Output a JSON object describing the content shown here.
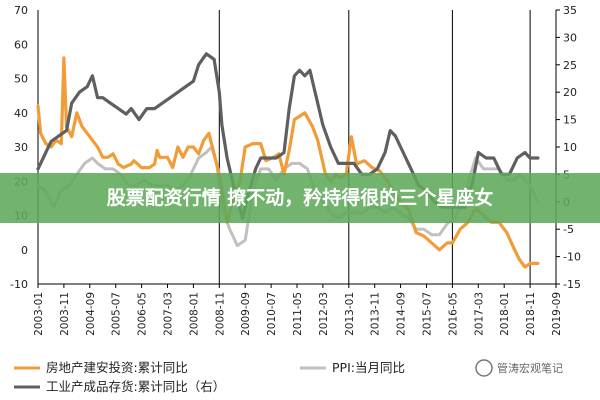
{
  "chart_data": {
    "type": "line",
    "x": [
      "2003-01",
      "2003-11",
      "2004-09",
      "2005-07",
      "2006-05",
      "2007-03",
      "2008-01",
      "2008-11",
      "2009-09",
      "2010-07",
      "2011-05",
      "2012-03",
      "2013-01",
      "2013-11",
      "2014-09",
      "2015-07",
      "2016-05",
      "2017-03",
      "2018-01",
      "2018-11",
      "2019-09"
    ],
    "xlim": [
      "2003-01",
      "2019-09"
    ],
    "ylim_left": [
      -10,
      70
    ],
    "yticks_left": [
      -10,
      0,
      10,
      20,
      30,
      40,
      50,
      60,
      70
    ],
    "ylim_right": [
      -15,
      35
    ],
    "yticks_right": [
      -15,
      -10,
      -5,
      0,
      5,
      10,
      15,
      20,
      25,
      30,
      35
    ],
    "vlines": [
      "2003-01",
      "2008-11",
      "2013-01",
      "2016-05",
      "2018-11"
    ],
    "series": [
      {
        "name": "房地产建安投资:累计同比",
        "axis": "left",
        "color": "#f29c38",
        "points": [
          [
            "2003-01",
            42
          ],
          [
            "2003-02",
            34
          ],
          [
            "2003-04",
            31
          ],
          [
            "2003-06",
            30
          ],
          [
            "2003-08",
            32
          ],
          [
            "2003-10",
            31
          ],
          [
            "2003-11",
            56
          ],
          [
            "2003-12",
            36
          ],
          [
            "2004-02",
            33
          ],
          [
            "2004-04",
            40
          ],
          [
            "2004-06",
            36
          ],
          [
            "2004-08",
            34
          ],
          [
            "2004-10",
            32
          ],
          [
            "2004-12",
            30
          ],
          [
            "2005-02",
            27
          ],
          [
            "2005-04",
            27
          ],
          [
            "2005-06",
            28
          ],
          [
            "2005-08",
            25
          ],
          [
            "2005-10",
            24
          ],
          [
            "2006-01",
            25
          ],
          [
            "2006-02",
            26
          ],
          [
            "2006-05",
            24
          ],
          [
            "2006-08",
            24
          ],
          [
            "2006-10",
            25
          ],
          [
            "2006-11",
            29
          ],
          [
            "2006-12",
            27
          ],
          [
            "2007-03",
            27
          ],
          [
            "2007-05",
            24
          ],
          [
            "2007-07",
            30
          ],
          [
            "2007-09",
            27
          ],
          [
            "2007-11",
            30
          ],
          [
            "2008-01",
            30
          ],
          [
            "2008-03",
            28
          ],
          [
            "2008-05",
            32
          ],
          [
            "2008-07",
            34
          ],
          [
            "2008-09",
            28
          ],
          [
            "2008-11",
            22
          ],
          [
            "2009-02",
            8
          ],
          [
            "2009-04",
            14
          ],
          [
            "2009-07",
            20
          ],
          [
            "2009-09",
            30
          ],
          [
            "2009-12",
            31
          ],
          [
            "2010-03",
            31
          ],
          [
            "2010-05",
            26
          ],
          [
            "2010-08",
            27
          ],
          [
            "2010-10",
            28
          ],
          [
            "2010-12",
            22
          ],
          [
            "2011-02",
            29
          ],
          [
            "2011-04",
            38
          ],
          [
            "2011-06",
            39
          ],
          [
            "2011-08",
            40
          ],
          [
            "2011-11",
            36
          ],
          [
            "2012-01",
            32
          ],
          [
            "2012-04",
            22
          ],
          [
            "2012-06",
            20
          ],
          [
            "2012-08",
            22
          ],
          [
            "2012-10",
            21
          ],
          [
            "2012-12",
            22
          ],
          [
            "2013-02",
            33
          ],
          [
            "2013-04",
            25
          ],
          [
            "2013-07",
            26
          ],
          [
            "2013-10",
            24
          ],
          [
            "2014-01",
            23
          ],
          [
            "2014-04",
            20
          ],
          [
            "2014-07",
            16
          ],
          [
            "2014-10",
            13
          ],
          [
            "2014-12",
            12
          ],
          [
            "2015-03",
            5
          ],
          [
            "2015-06",
            4
          ],
          [
            "2015-09",
            2
          ],
          [
            "2015-12",
            0
          ],
          [
            "2016-03",
            2
          ],
          [
            "2016-05",
            2
          ],
          [
            "2016-08",
            6
          ],
          [
            "2016-11",
            8
          ],
          [
            "2017-02",
            12
          ],
          [
            "2017-05",
            10
          ],
          [
            "2017-08",
            8
          ],
          [
            "2017-11",
            8
          ],
          [
            "2018-02",
            5
          ],
          [
            "2018-05",
            0
          ],
          [
            "2018-07",
            -3
          ],
          [
            "2018-09",
            -5
          ],
          [
            "2018-11",
            -4
          ],
          [
            "2019-01",
            -4
          ],
          [
            "2019-02",
            -4
          ]
        ]
      },
      {
        "name": "PPI:当月同比",
        "axis": "right",
        "color": "#c0c0c0",
        "points": [
          [
            "2003-01",
            3
          ],
          [
            "2003-04",
            2
          ],
          [
            "2003-07",
            -1
          ],
          [
            "2003-10",
            2
          ],
          [
            "2004-01",
            3
          ],
          [
            "2004-04",
            5
          ],
          [
            "2004-07",
            7
          ],
          [
            "2004-10",
            8
          ],
          [
            "2004-12",
            7
          ],
          [
            "2005-03",
            6
          ],
          [
            "2005-06",
            6
          ],
          [
            "2005-09",
            5
          ],
          [
            "2005-12",
            3
          ],
          [
            "2006-03",
            3
          ],
          [
            "2006-06",
            4
          ],
          [
            "2006-09",
            3
          ],
          [
            "2006-12",
            3
          ],
          [
            "2007-03",
            3
          ],
          [
            "2007-06",
            2
          ],
          [
            "2007-09",
            3
          ],
          [
            "2007-12",
            5
          ],
          [
            "2008-03",
            8
          ],
          [
            "2008-06",
            9
          ],
          [
            "2008-08",
            10
          ],
          [
            "2008-10",
            7
          ],
          [
            "2008-12",
            -1
          ],
          [
            "2009-03",
            -5
          ],
          [
            "2009-06",
            -8
          ],
          [
            "2009-09",
            -7
          ],
          [
            "2009-12",
            2
          ],
          [
            "2010-03",
            6
          ],
          [
            "2010-06",
            6
          ],
          [
            "2010-09",
            4
          ],
          [
            "2010-12",
            6
          ],
          [
            "2011-03",
            7
          ],
          [
            "2011-06",
            7
          ],
          [
            "2011-09",
            6
          ],
          [
            "2011-12",
            2
          ],
          [
            "2012-03",
            0
          ],
          [
            "2012-06",
            -2
          ],
          [
            "2012-09",
            -3
          ],
          [
            "2012-12",
            -2
          ],
          [
            "2013-03",
            -2
          ],
          [
            "2013-06",
            -2
          ],
          [
            "2013-09",
            -1
          ],
          [
            "2013-12",
            -1
          ],
          [
            "2014-03",
            -2
          ],
          [
            "2014-06",
            -1
          ],
          [
            "2014-09",
            -2
          ],
          [
            "2014-12",
            -3
          ],
          [
            "2015-03",
            -5
          ],
          [
            "2015-06",
            -5
          ],
          [
            "2015-09",
            -6
          ],
          [
            "2015-12",
            -6
          ],
          [
            "2016-03",
            -4
          ],
          [
            "2016-06",
            -3
          ],
          [
            "2016-09",
            0
          ],
          [
            "2016-12",
            5
          ],
          [
            "2017-02",
            8
          ],
          [
            "2017-05",
            6
          ],
          [
            "2017-08",
            6
          ],
          [
            "2017-11",
            6
          ],
          [
            "2018-02",
            4
          ],
          [
            "2018-05",
            4
          ],
          [
            "2018-07",
            5
          ],
          [
            "2018-09",
            4
          ],
          [
            "2018-11",
            3
          ],
          [
            "2019-01",
            1
          ],
          [
            "2019-02",
            0
          ]
        ]
      },
      {
        "name": "工业产成品存货:累计同比（右）",
        "axis": "right",
        "color": "#5f5f5f",
        "points": [
          [
            "2003-01",
            6
          ],
          [
            "2003-03",
            8
          ],
          [
            "2003-06",
            11
          ],
          [
            "2003-09",
            12
          ],
          [
            "2003-12",
            13
          ],
          [
            "2004-02",
            18
          ],
          [
            "2004-05",
            20
          ],
          [
            "2004-08",
            21
          ],
          [
            "2004-10",
            23
          ],
          [
            "2004-12",
            19
          ],
          [
            "2005-02",
            19
          ],
          [
            "2005-05",
            18
          ],
          [
            "2005-08",
            17
          ],
          [
            "2005-11",
            16
          ],
          [
            "2006-01",
            17
          ],
          [
            "2006-04",
            15
          ],
          [
            "2006-07",
            17
          ],
          [
            "2006-10",
            17
          ],
          [
            "2007-01",
            18
          ],
          [
            "2007-04",
            19
          ],
          [
            "2007-07",
            20
          ],
          [
            "2007-10",
            21
          ],
          [
            "2008-01",
            22
          ],
          [
            "2008-03",
            25
          ],
          [
            "2008-06",
            27
          ],
          [
            "2008-09",
            26
          ],
          [
            "2008-11",
            20
          ],
          [
            "2008-12",
            14
          ],
          [
            "2009-02",
            8
          ],
          [
            "2009-05",
            2
          ],
          [
            "2009-08",
            -3
          ],
          [
            "2009-10",
            1
          ],
          [
            "2010-01",
            6
          ],
          [
            "2010-03",
            8
          ],
          [
            "2010-06",
            8
          ],
          [
            "2010-09",
            8
          ],
          [
            "2010-12",
            9
          ],
          [
            "2011-02",
            17
          ],
          [
            "2011-04",
            23
          ],
          [
            "2011-06",
            24
          ],
          [
            "2011-08",
            23
          ],
          [
            "2011-10",
            24
          ],
          [
            "2011-12",
            20
          ],
          [
            "2012-03",
            14
          ],
          [
            "2012-06",
            10
          ],
          [
            "2012-09",
            7
          ],
          [
            "2012-12",
            7
          ],
          [
            "2013-03",
            7
          ],
          [
            "2013-06",
            5
          ],
          [
            "2013-09",
            5
          ],
          [
            "2013-12",
            6
          ],
          [
            "2014-03",
            9
          ],
          [
            "2014-05",
            13
          ],
          [
            "2014-07",
            12
          ],
          [
            "2014-09",
            10
          ],
          [
            "2014-11",
            8
          ],
          [
            "2015-01",
            6
          ],
          [
            "2015-04",
            3
          ],
          [
            "2015-07",
            2
          ],
          [
            "2015-10",
            0
          ],
          [
            "2016-01",
            -1
          ],
          [
            "2016-04",
            -1
          ],
          [
            "2016-07",
            -1
          ],
          [
            "2016-10",
            -1
          ],
          [
            "2017-01",
            4
          ],
          [
            "2017-03",
            9
          ],
          [
            "2017-06",
            8
          ],
          [
            "2017-09",
            8
          ],
          [
            "2017-12",
            5
          ],
          [
            "2018-03",
            5
          ],
          [
            "2018-06",
            8
          ],
          [
            "2018-09",
            9
          ],
          [
            "2018-11",
            8
          ],
          [
            "2019-01",
            8
          ],
          [
            "2019-02",
            8
          ]
        ]
      }
    ],
    "legend": [
      {
        "label": "房地产建安投资:累计同比",
        "color": "#f29c38"
      },
      {
        "label": "PPI:当月同比",
        "color": "#c0c0c0"
      },
      {
        "label": "工业产成品存货:累计同比（右）",
        "color": "#5f5f5f"
      }
    ],
    "legend_position": "bottom"
  },
  "overlay": {
    "banner_text": "股票配资行情 撩不动，矜持得很的三个星座女",
    "banner_color": "#5ea85a",
    "watermark_text": "管涛宏观笔记"
  }
}
